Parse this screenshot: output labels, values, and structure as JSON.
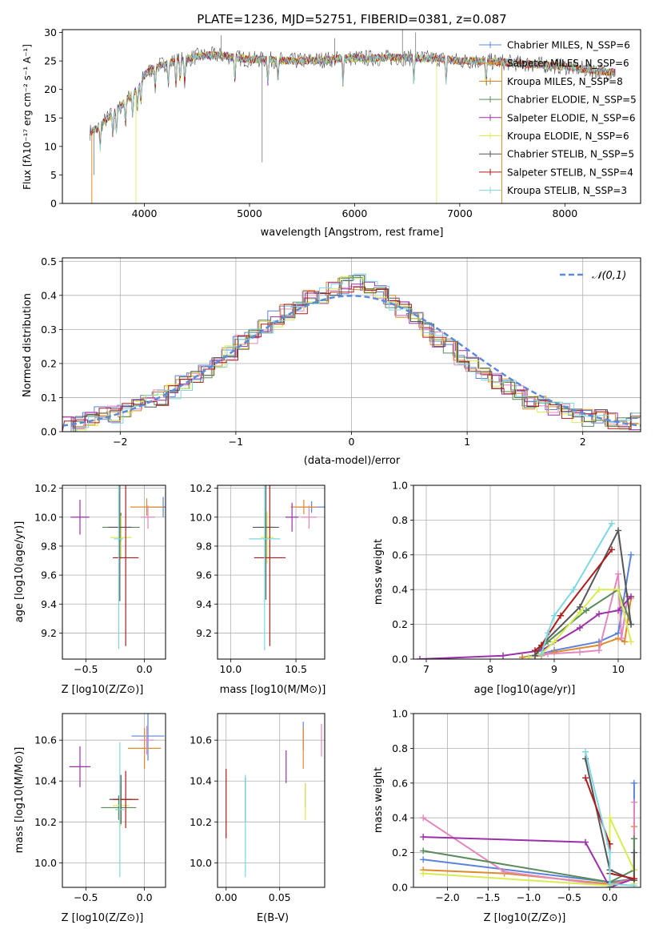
{
  "chart_data": [
    {
      "id": "spectrum",
      "type": "line",
      "title": "PLATE=1236, MJD=52751, FIBERID=0381, z=0.087",
      "xlabel": "wavelength [Angstrom, rest frame]",
      "ylabel": "Flux [fλ10⁻¹⁷ erg cm⁻² s⁻¹ A⁻¹]",
      "xlim": [
        3220,
        8720
      ],
      "ylim": [
        0,
        30.5
      ],
      "xticks": [
        4000,
        5000,
        6000,
        7000,
        8000
      ],
      "yticks": [
        0,
        5,
        10,
        15,
        20,
        25,
        30
      ],
      "legend_position": "right",
      "series": [
        {
          "name": "Chabrier MILES, N_SSP=6",
          "color": "#5b84d8"
        },
        {
          "name": "Salpeter MILES, N_SSP=6",
          "color": "#e08b2b"
        },
        {
          "name": "Kroupa MILES, N_SSP=8",
          "color": "#c97f1c"
        },
        {
          "name": "Chabrier ELODIE, N_SSP=5",
          "color": "#5a8c5a"
        },
        {
          "name": "Salpeter ELODIE, N_SSP=6",
          "color": "#9b30a8"
        },
        {
          "name": "Kroupa ELODIE, N_SSP=6",
          "color": "#d8ec52"
        },
        {
          "name": "Chabrier STELIB, N_SSP=5",
          "color": "#555555"
        },
        {
          "name": "Salpeter STELIB, N_SSP=4",
          "color": "#b01b1b"
        },
        {
          "name": "Kroupa STELIB, N_SSP=3",
          "color": "#7fd7e2"
        }
      ],
      "continuum": {
        "x": [
          3480,
          3550,
          3650,
          3750,
          3850,
          3950,
          4000,
          4100,
          4200,
          4300,
          4400,
          4500,
          4600,
          4700,
          4800,
          4900,
          5000,
          5200,
          5400,
          5600,
          5800,
          6000,
          6200,
          6400,
          6600,
          6800,
          7000,
          7200,
          7400,
          7600,
          7800,
          8000,
          8200,
          8450
        ],
        "y": [
          12.5,
          13,
          15,
          16.5,
          18.5,
          20.5,
          22.5,
          24,
          24.5,
          25,
          25.3,
          25.8,
          26,
          26,
          25.8,
          25.5,
          25.3,
          25.2,
          25,
          25.1,
          25.3,
          25.5,
          25.5,
          25.6,
          25.5,
          25.4,
          25,
          25,
          24.8,
          24.5,
          24.3,
          24,
          23.5,
          23
        ]
      }
    },
    {
      "id": "residuals",
      "type": "histogram",
      "xlabel": "(data-model)/error",
      "ylabel": "Normed distribution",
      "xlim": [
        -2.5,
        2.5
      ],
      "ylim": [
        0,
        0.51
      ],
      "xticks": [
        -2,
        -1,
        0,
        1,
        2
      ],
      "yticks": [
        0.0,
        0.1,
        0.2,
        0.3,
        0.4,
        0.5
      ],
      "legend": "𝒩(0,1)",
      "legend_position": "top-right",
      "reference_curve": {
        "type": "gaussian",
        "mean": 0,
        "sigma": 1,
        "color": "#5b8bd8"
      },
      "hist_bins": [
        -2.5,
        2.5,
        50
      ],
      "hist_approx_values": [
        0.02,
        0.03,
        0.04,
        0.05,
        0.05,
        0.06,
        0.07,
        0.09,
        0.1,
        0.12,
        0.14,
        0.16,
        0.18,
        0.21,
        0.23,
        0.26,
        0.28,
        0.31,
        0.33,
        0.35,
        0.37,
        0.39,
        0.4,
        0.42,
        0.43,
        0.44,
        0.43,
        0.41,
        0.38,
        0.36,
        0.33,
        0.3,
        0.27,
        0.25,
        0.22,
        0.2,
        0.17,
        0.15,
        0.13,
        0.11,
        0.09,
        0.08,
        0.07,
        0.06,
        0.05,
        0.04,
        0.04,
        0.03,
        0.03,
        0.03
      ]
    },
    {
      "id": "age-vs-z",
      "type": "scatter",
      "xlabel": "Z [log10(Z/Z⊙)]",
      "ylabel": "age  [log10(age/yr)]",
      "xlim": [
        -0.7,
        0.18
      ],
      "ylim": [
        9.02,
        10.22
      ],
      "xticks": [
        -0.5,
        0.0
      ],
      "yticks": [
        9.2,
        9.4,
        9.6,
        9.8,
        10.0,
        10.2
      ],
      "points": [
        {
          "x": 0.16,
          "y": 10.07,
          "xerr": 0.12,
          "yerr": 0.07,
          "color": "#5b84d8"
        },
        {
          "x": 0.02,
          "y": 10.07,
          "xerr": 0.14,
          "yerr": 0.06,
          "color": "#e08b2b"
        },
        {
          "x": 0.03,
          "y": 10.0,
          "xerr": 0.06,
          "yerr": 0.08,
          "color": "#e486bf"
        },
        {
          "x": -0.2,
          "y": 9.93,
          "xerr": 0.16,
          "yerr": 0.1,
          "color": "#5a8c5a"
        },
        {
          "x": -0.55,
          "y": 10.0,
          "xerr": 0.08,
          "yerr": 0.12,
          "color": "#9b30a8"
        },
        {
          "x": -0.2,
          "y": 9.86,
          "xerr": 0.09,
          "yerr": 0.15,
          "color": "#d8ec52"
        },
        {
          "x": -0.21,
          "y": 9.93,
          "xerr": 0.1,
          "yerr": 0.51,
          "color": "#555555"
        },
        {
          "x": -0.16,
          "y": 9.72,
          "xerr": 0.11,
          "yerr": 0.61,
          "color": "#b01b1b"
        },
        {
          "x": -0.22,
          "y": 9.85,
          "xerr": 0.04,
          "yerr": 0.76,
          "color": "#7fd7e2"
        }
      ]
    },
    {
      "id": "age-vs-mass",
      "type": "scatter",
      "xlabel": "mass [log10(M/M⊙)]",
      "ylabel": "",
      "xlim": [
        9.9,
        10.72
      ],
      "ylim": [
        9.02,
        10.22
      ],
      "xticks": [
        10.0,
        10.5
      ],
      "yticks": [
        9.2,
        9.4,
        9.6,
        9.8,
        10.0,
        10.2
      ],
      "points": [
        {
          "x": 10.62,
          "y": 10.07,
          "xerr": 0.11,
          "yerr": 0.04,
          "color": "#5b84d8"
        },
        {
          "x": 10.56,
          "y": 10.07,
          "xerr": 0.1,
          "yerr": 0.05,
          "color": "#e08b2b"
        },
        {
          "x": 10.6,
          "y": 10.0,
          "xerr": 0.06,
          "yerr": 0.08,
          "color": "#e486bf"
        },
        {
          "x": 10.27,
          "y": 9.93,
          "xerr": 0.06,
          "yerr": 0.1,
          "color": "#5a8c5a"
        },
        {
          "x": 10.47,
          "y": 10.0,
          "xerr": 0.05,
          "yerr": 0.1,
          "color": "#9b30a8"
        },
        {
          "x": 10.28,
          "y": 9.86,
          "xerr": 0.05,
          "yerr": 0.18,
          "color": "#d8ec52"
        },
        {
          "x": 10.27,
          "y": 9.93,
          "xerr": 0.1,
          "yerr": 0.5,
          "color": "#555555"
        },
        {
          "x": 10.3,
          "y": 9.72,
          "xerr": 0.12,
          "yerr": 0.61,
          "color": "#b01b1b"
        },
        {
          "x": 10.26,
          "y": 9.85,
          "xerr": 0.12,
          "yerr": 0.77,
          "color": "#7fd7e2"
        }
      ]
    },
    {
      "id": "mass-weight-vs-age",
      "type": "line",
      "xlabel": "age  [log10(age/yr)]",
      "ylabel": "mass weight",
      "xlim": [
        6.8,
        10.35
      ],
      "ylim": [
        0,
        1.0
      ],
      "xticks": [
        7,
        8,
        9,
        10
      ],
      "yticks": [
        0.0,
        0.2,
        0.4,
        0.6,
        0.8,
        1.0
      ],
      "series": [
        {
          "color": "#5b84d8",
          "x": [
            8.5,
            8.8,
            9.0,
            9.7,
            10.0,
            10.2
          ],
          "y": [
            0.01,
            0.03,
            0.05,
            0.1,
            0.15,
            0.6
          ]
        },
        {
          "color": "#e08b2b",
          "x": [
            8.5,
            8.8,
            9.0,
            9.7,
            10.0,
            10.1,
            10.2
          ],
          "y": [
            0.01,
            0.02,
            0.04,
            0.08,
            0.12,
            0.1,
            0.35
          ]
        },
        {
          "color": "#e486bf",
          "x": [
            8.6,
            8.9,
            9.4,
            9.7,
            10.0,
            10.05,
            10.15
          ],
          "y": [
            0.01,
            0.03,
            0.04,
            0.05,
            0.49,
            0.12,
            0.36
          ]
        },
        {
          "color": "#5a8c5a",
          "x": [
            8.7,
            8.9,
            9.5,
            10.0,
            10.2
          ],
          "y": [
            0.02,
            0.1,
            0.28,
            0.4,
            0.2
          ]
        },
        {
          "color": "#9b30a8",
          "x": [
            6.9,
            8.2,
            8.8,
            9.4,
            9.7,
            10.0,
            10.2
          ],
          "y": [
            0.0,
            0.02,
            0.05,
            0.18,
            0.26,
            0.28,
            0.36
          ]
        },
        {
          "color": "#d8ec52",
          "x": [
            8.6,
            8.8,
            9.0,
            9.4,
            9.7,
            10.0,
            10.2
          ],
          "y": [
            0.01,
            0.03,
            0.1,
            0.27,
            0.4,
            0.4,
            0.1
          ]
        },
        {
          "color": "#555555",
          "x": [
            8.7,
            8.8,
            9.4,
            10.0,
            10.2
          ],
          "y": [
            0.02,
            0.08,
            0.3,
            0.74,
            0.2
          ]
        },
        {
          "color": "#b01b1b",
          "x": [
            8.7,
            8.8,
            9.1,
            9.9
          ],
          "y": [
            0.05,
            0.08,
            0.25,
            0.63
          ]
        },
        {
          "color": "#7fd7e2",
          "x": [
            8.8,
            8.9,
            9.0,
            9.3,
            9.9
          ],
          "y": [
            0.03,
            0.15,
            0.25,
            0.4,
            0.78
          ]
        }
      ]
    },
    {
      "id": "mass-vs-z",
      "type": "scatter",
      "xlabel": "Z [log10(Z/Z⊙)]",
      "ylabel": "mass [log10(M/M⊙)]",
      "xlim": [
        -0.7,
        0.18
      ],
      "ylim": [
        9.88,
        10.73
      ],
      "xticks": [
        -0.5,
        0.0
      ],
      "yticks": [
        10.0,
        10.2,
        10.4,
        10.6
      ],
      "points": [
        {
          "x": 0.03,
          "y": 10.62,
          "xerr": 0.14,
          "yerr": 0.12,
          "color": "#5b84d8"
        },
        {
          "x": 0.0,
          "y": 10.56,
          "xerr": 0.14,
          "yerr": 0.1,
          "color": "#e08b2b"
        },
        {
          "x": 0.02,
          "y": 10.6,
          "xerr": 0.06,
          "yerr": 0.07,
          "color": "#e486bf"
        },
        {
          "x": -0.22,
          "y": 10.27,
          "xerr": 0.15,
          "yerr": 0.06,
          "color": "#5a8c5a"
        },
        {
          "x": -0.55,
          "y": 10.47,
          "xerr": 0.09,
          "yerr": 0.1,
          "color": "#9b30a8"
        },
        {
          "x": -0.2,
          "y": 10.28,
          "xerr": 0.07,
          "yerr": 0.1,
          "color": "#d8ec52"
        },
        {
          "x": -0.2,
          "y": 10.31,
          "xerr": 0.1,
          "yerr": 0.12,
          "color": "#555555"
        },
        {
          "x": -0.16,
          "y": 10.31,
          "xerr": 0.11,
          "yerr": 0.14,
          "color": "#b01b1b"
        },
        {
          "x": -0.21,
          "y": 10.26,
          "xerr": 0.04,
          "yerr": 0.33,
          "color": "#7fd7e2"
        }
      ]
    },
    {
      "id": "mass-vs-ebv",
      "type": "scatter",
      "xlabel": "E(B-V)",
      "ylabel": "",
      "xlim": [
        -0.008,
        0.092
      ],
      "ylim": [
        9.88,
        10.73
      ],
      "xticks": [
        0.0,
        0.05
      ],
      "yticks": [
        10.0,
        10.2,
        10.4,
        10.6
      ],
      "points": [
        {
          "x": 0.072,
          "y": 10.62,
          "xerr": 0,
          "yerr": 0.07,
          "color": "#5b84d8"
        },
        {
          "x": 0.072,
          "y": 10.56,
          "xerr": 0,
          "yerr": 0.1,
          "color": "#e08b2b"
        },
        {
          "x": 0.089,
          "y": 10.6,
          "xerr": 0,
          "yerr": 0.08,
          "color": "#e486bf"
        },
        {
          "x": 0.074,
          "y": 10.33,
          "xerr": 0,
          "yerr": 0.06,
          "color": "#5a8c5a"
        },
        {
          "x": 0.056,
          "y": 10.47,
          "xerr": 0,
          "yerr": 0.08,
          "color": "#9b30a8"
        },
        {
          "x": 0.074,
          "y": 10.3,
          "xerr": 0,
          "yerr": 0.09,
          "color": "#d8ec52"
        },
        {
          "x": 0.018,
          "y": 10.31,
          "xerr": 0,
          "yerr": 0.11,
          "color": "#555555"
        },
        {
          "x": 0.0,
          "y": 10.29,
          "xerr": 0,
          "yerr": 0.17,
          "color": "#b01b1b"
        },
        {
          "x": 0.018,
          "y": 10.18,
          "xerr": 0,
          "yerr": 0.25,
          "color": "#7fd7e2"
        }
      ]
    },
    {
      "id": "mass-weight-vs-z",
      "type": "line",
      "xlabel": "Z [log10(Z/Z⊙)]",
      "ylabel": "mass weight",
      "xlim": [
        -2.42,
        0.38
      ],
      "ylim": [
        0,
        1.0
      ],
      "xticks": [
        -2.0,
        -1.5,
        -1.0,
        -0.5,
        0.0
      ],
      "yticks": [
        0.0,
        0.2,
        0.4,
        0.6,
        0.8,
        1.0
      ],
      "series": [
        {
          "color": "#5b84d8",
          "x": [
            -2.3,
            0.0,
            0.3,
            0.3
          ],
          "y": [
            0.16,
            0.03,
            0.05,
            0.6
          ]
        },
        {
          "color": "#e08b2b",
          "x": [
            -2.3,
            -1.3,
            0.0,
            0.3,
            0.3
          ],
          "y": [
            0.1,
            0.08,
            0.02,
            0.05,
            0.35
          ]
        },
        {
          "color": "#e486bf",
          "x": [
            -2.3,
            -1.3,
            0.0,
            0.3,
            0.3
          ],
          "y": [
            0.4,
            0.09,
            0.01,
            0.05,
            0.49
          ]
        },
        {
          "color": "#5a8c5a",
          "x": [
            -2.3,
            0.0,
            0.3,
            0.3
          ],
          "y": [
            0.21,
            0.03,
            0.1,
            0.28
          ]
        },
        {
          "color": "#9b30a8",
          "x": [
            -2.3,
            -0.3,
            0.0,
            0.3
          ],
          "y": [
            0.29,
            0.26,
            0.0,
            0.05
          ]
        },
        {
          "color": "#d8ec52",
          "x": [
            -2.3,
            0.0,
            0.0,
            0.3,
            0.3
          ],
          "y": [
            0.08,
            0.01,
            0.4,
            0.1,
            0.02
          ]
        },
        {
          "color": "#555555",
          "x": [
            -0.3,
            0.0,
            0.3,
            0.3
          ],
          "y": [
            0.74,
            0.1,
            0.04,
            0.2
          ]
        },
        {
          "color": "#b01b1b",
          "x": [
            -0.3,
            0.0,
            0.0,
            0.3
          ],
          "y": [
            0.63,
            0.25,
            0.08,
            0.05
          ]
        },
        {
          "color": "#7fd7e2",
          "x": [
            -0.3,
            0.0,
            0.0,
            0.3
          ],
          "y": [
            0.78,
            0.2,
            0.02,
            0.01
          ]
        }
      ]
    }
  ]
}
